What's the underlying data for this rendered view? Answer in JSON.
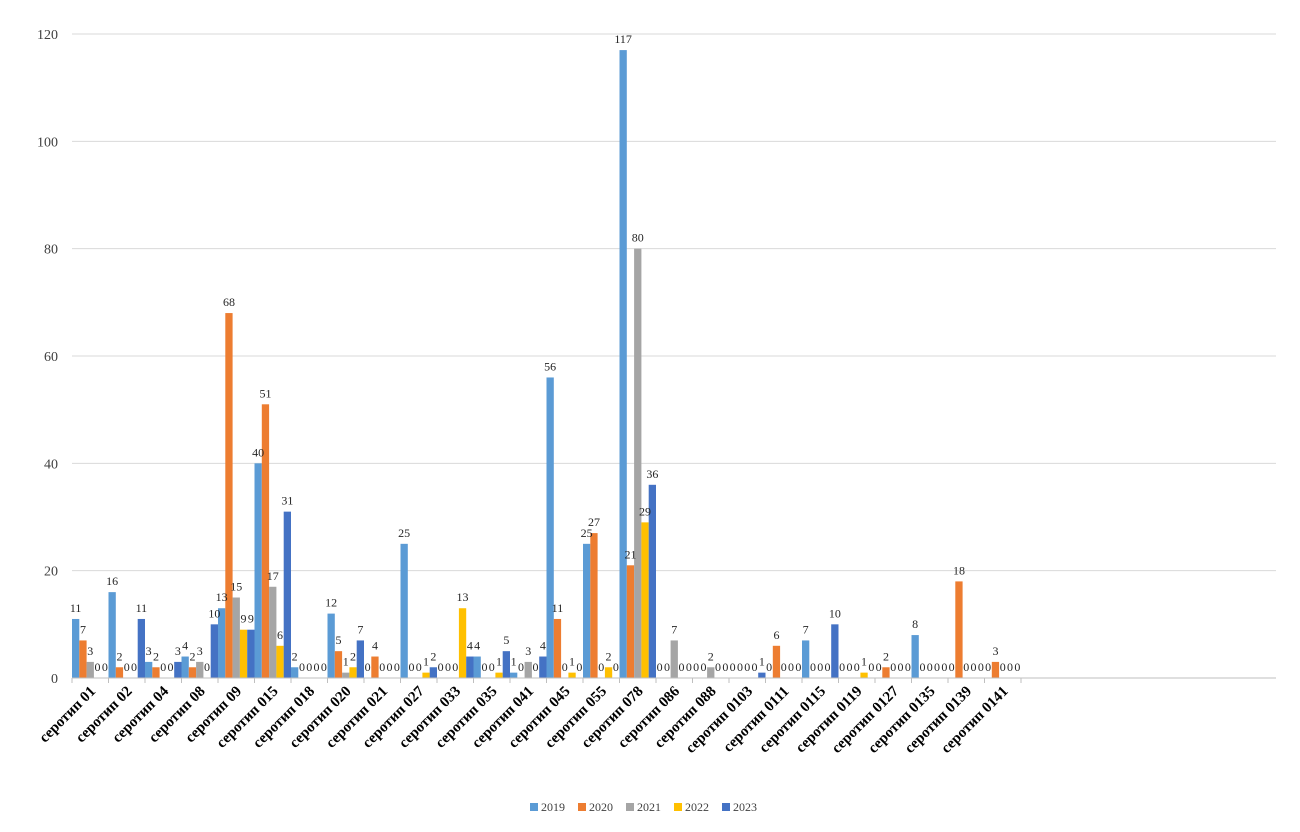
{
  "chart_data": {
    "type": "bar",
    "title": "",
    "xlabel": "",
    "ylabel": "",
    "ylim": [
      0,
      120
    ],
    "yticks": [
      0,
      20,
      40,
      60,
      80,
      100,
      120
    ],
    "grid": true,
    "legend_position": "bottom",
    "categories": [
      "серотип 01",
      "серотип 02",
      "серотип 04",
      "серотип 08",
      "серотип 09",
      "серотип 015",
      "серотип 018",
      "серотип 020",
      "серотип 021",
      "серотип 027",
      "серотип 033",
      "серотип 035",
      "серотип 041",
      "серотип 045",
      "серотип 055",
      "серотип 078",
      "серотип 086",
      "серотип 088",
      "серотип 0103",
      "серотип 0111",
      "серотип 0115",
      "серотип 0119",
      "серотип 0127",
      "серотип 0135",
      "серотип 0139",
      "серотип 0141"
    ],
    "series": [
      {
        "name": "2019",
        "color": "#5B9BD5",
        "values": [
          11,
          16,
          3,
          4,
          13,
          40,
          2,
          12,
          0,
          25,
          0,
          4,
          1,
          56,
          25,
          117,
          0,
          0,
          0,
          0,
          7,
          0,
          0,
          8,
          0,
          0
        ]
      },
      {
        "name": "2020",
        "color": "#ED7D31",
        "values": [
          7,
          2,
          2,
          2,
          68,
          51,
          0,
          5,
          4,
          0,
          0,
          0,
          0,
          11,
          27,
          21,
          0,
          0,
          0,
          6,
          0,
          0,
          2,
          0,
          18,
          3
        ]
      },
      {
        "name": "2021",
        "color": "#A5A5A5",
        "values": [
          3,
          0,
          0,
          3,
          15,
          17,
          0,
          1,
          0,
          0,
          0,
          0,
          3,
          0,
          0,
          80,
          7,
          2,
          0,
          0,
          0,
          0,
          0,
          0,
          0,
          0
        ]
      },
      {
        "name": "2022",
        "color": "#FFC000",
        "values": [
          0,
          0,
          0,
          0,
          9,
          6,
          0,
          2,
          0,
          1,
          13,
          1,
          0,
          1,
          2,
          29,
          0,
          0,
          0,
          0,
          0,
          1,
          0,
          0,
          0,
          0
        ]
      },
      {
        "name": "2023",
        "color": "#4472C4",
        "values": [
          0,
          11,
          3,
          10,
          9,
          31,
          0,
          7,
          0,
          2,
          4,
          5,
          4,
          0,
          0,
          36,
          0,
          0,
          1,
          0,
          10,
          0,
          0,
          0,
          0,
          0
        ]
      }
    ]
  }
}
